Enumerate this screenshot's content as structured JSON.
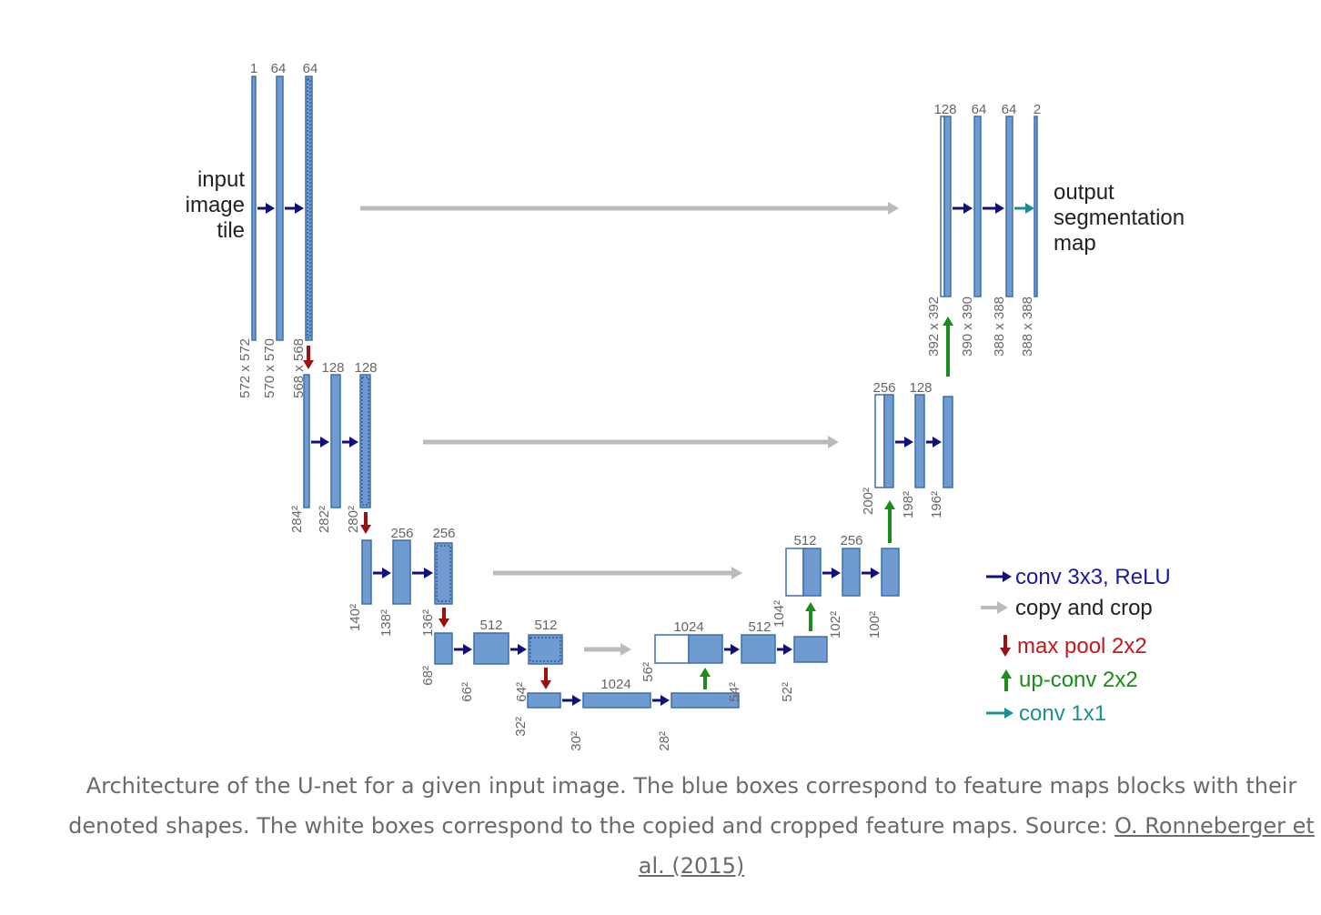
{
  "colors": {
    "feature_map": "#6f9bd1",
    "feature_map_edge": "#3d6fb0",
    "conv": "#10107a",
    "copy": "#bbbbbb",
    "pool": "#9b1010",
    "upconv": "#1a8c1a",
    "conv1x1": "#1a9090",
    "legend_conv": "#1a1aa0",
    "legend_copy": "#222222",
    "legend_pool": "#c01a1a",
    "legend_up": "#1a8c1a",
    "legend_1x1": "#1a9090"
  },
  "diagram": {
    "input_label": [
      "input",
      "image",
      "tile"
    ],
    "output_label": [
      "output",
      "segmentation",
      "map"
    ],
    "channels": {
      "l1": [
        "1",
        "64",
        "64"
      ],
      "l2": [
        "128",
        "128"
      ],
      "l3": [
        "256",
        "256"
      ],
      "l4": [
        "512",
        "512"
      ],
      "bottom": [
        "1024"
      ],
      "u4": [
        "1024",
        "512"
      ],
      "u3": [
        "512",
        "256"
      ],
      "u2": [
        "256",
        "128"
      ],
      "u1": [
        "128",
        "64",
        "64",
        "2"
      ]
    },
    "sizes": {
      "l1": [
        "572 x 572",
        "570 x 570",
        "568 x 568"
      ],
      "l2": [
        "284²",
        "282²",
        "280²"
      ],
      "l3": [
        "140²",
        "138²",
        "136²"
      ],
      "l4": [
        "68²",
        "66²",
        "64²"
      ],
      "bottom": [
        "32²",
        "30²",
        "28²"
      ],
      "u4": [
        "56²",
        "54²",
        "52²"
      ],
      "u3": [
        "104²",
        "102²",
        "100²"
      ],
      "u2": [
        "200²",
        "198²",
        "196²"
      ],
      "u1": [
        "392 x 392",
        "390 x 390",
        "388 x 388",
        "388 x 388"
      ]
    }
  },
  "legend": {
    "conv": "conv 3x3, ReLU",
    "copy": "copy and crop",
    "pool": "max pool 2x2",
    "up": "up-conv 2x2",
    "conv1x1": "conv 1x1"
  },
  "caption": {
    "text": "Architecture of the U-net for a given input image. The blue boxes correspond to feature maps blocks with their denoted shapes. The white boxes correspond to the copied and cropped feature maps. Source: ",
    "link": "O. Ronneberger et al. (2015)"
  }
}
